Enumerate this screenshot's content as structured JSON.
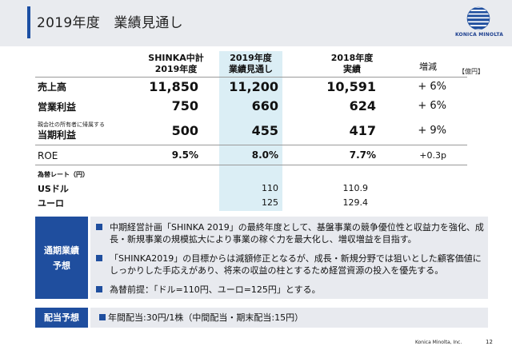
{
  "header": {
    "title": "2019年度　業績見通し"
  },
  "logo": {
    "text": "KONICA MINOLTA"
  },
  "columns": {
    "plan": [
      "SHINKA中計",
      "2019年度"
    ],
    "forecast": [
      "2019年度",
      "業績見通し"
    ],
    "actual": [
      "2018年度",
      "実績"
    ],
    "increase": "増減",
    "unit": "【億円】"
  },
  "rows": {
    "sales": {
      "label": "売上高",
      "plan": "11,850",
      "forecast": "11,200",
      "actual": "10,591",
      "increase": "+ 6%"
    },
    "operating": {
      "label": "営業利益",
      "plan": "750",
      "forecast": "660",
      "actual": "624",
      "increase": "+ 6%"
    },
    "net": {
      "sublabel": "親会社の所有者に帰属する",
      "label": "当期利益",
      "plan": "500",
      "forecast": "455",
      "actual": "417",
      "increase": "+ 9%"
    },
    "roe": {
      "label": "ROE",
      "plan": "9.5%",
      "forecast": "8.0%",
      "actual": "7.7%",
      "increase": "+0.3p"
    }
  },
  "fx": {
    "heading": "為替レート（円）",
    "usd": {
      "label": "USドル",
      "forecast": "110",
      "actual": "110.9"
    },
    "eur": {
      "label": "ユーロ",
      "forecast": "125",
      "actual": "129.4"
    }
  },
  "outlook": {
    "label_line1": "通期業績",
    "label_line2": "予想",
    "bullets": [
      "中期経営計画「SHINKA 2019」の最終年度として、基盤事業の競争優位性と収益力を強化、成長・新規事業の規模拡大により事業の稼ぐ力を最大化し、増収増益を目指す。",
      "「SHINKA2019」の目標からは減額修正となるが、成長・新規分野では狙いとした顧客価値にしっかりした手応えがあり、将来の収益の柱とするため経営資源の投入を優先する。",
      "為替前提：「ドル=110円、ユーロ=125円」とする。"
    ]
  },
  "dividend": {
    "label": "配当予想",
    "text": "年間配当:30円/1株（中間配当・期末配当:15円）"
  },
  "footer": {
    "company": "Konica Minolta, Inc.",
    "page": "12"
  },
  "colors": {
    "accent": "#1f4e9e",
    "highlight": "#dbeef5",
    "panel": "#e8eaef"
  }
}
